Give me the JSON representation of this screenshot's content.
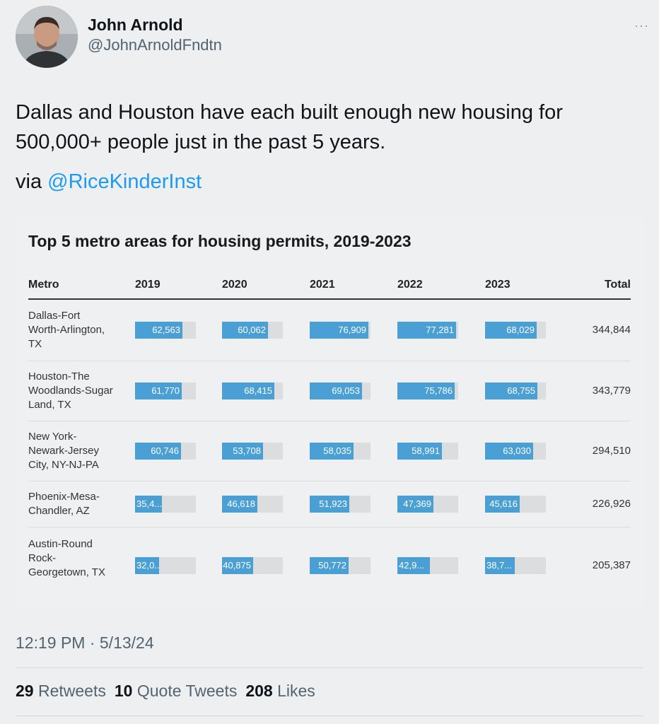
{
  "author": {
    "display_name": "John Arnold",
    "handle": "@JohnArnoldFndtn",
    "avatar_icon": "person-photo-icon"
  },
  "more_label": "···",
  "tweet": {
    "text": "Dallas and Houston have each built enough new housing for 500,000+ people just in the past 5 years.",
    "via_prefix": "via ",
    "via_mention": "@RiceKinderInst"
  },
  "chart_data": {
    "type": "table",
    "title": "Top 5 metro areas for housing permits, 2019-2023",
    "columns": [
      "Metro",
      "2019",
      "2020",
      "2021",
      "2022",
      "2023",
      "Total"
    ],
    "bar_max": 80000,
    "rows": [
      {
        "metro": "Dallas-Fort Worth-Arlington, TX",
        "values": [
          62563,
          60062,
          76909,
          77281,
          68029
        ],
        "labels": [
          "62,563",
          "60,062",
          "76,909",
          "77,281",
          "68,029"
        ],
        "total": "344,844"
      },
      {
        "metro": "Houston-The Woodlands-Sugar Land, TX",
        "values": [
          61770,
          68415,
          69053,
          75786,
          68755
        ],
        "labels": [
          "61,770",
          "68,415",
          "69,053",
          "75,786",
          "68,755"
        ],
        "total": "343,779"
      },
      {
        "metro": "New York-Newark-Jersey City, NY-NJ-PA",
        "values": [
          60746,
          53708,
          58035,
          58991,
          63030
        ],
        "labels": [
          "60,746",
          "53,708",
          "58,035",
          "58,991",
          "63,030"
        ],
        "total": "294,510"
      },
      {
        "metro": "Phoenix-Mesa-Chandler, AZ",
        "values": [
          35400,
          46618,
          51923,
          47369,
          45616
        ],
        "labels": [
          "35,4...",
          "46,618",
          "51,923",
          "47,369",
          "45,616"
        ],
        "total": "226,926"
      },
      {
        "metro": "Austin-Round Rock-Georgetown, TX",
        "values": [
          32000,
          40875,
          50772,
          42900,
          38700
        ],
        "labels": [
          "32,0...",
          "40,875",
          "50,772",
          "42,9...",
          "38,7..."
        ],
        "total": "205,387"
      }
    ],
    "colors": {
      "bar": "#4a9fd4",
      "track": "#dcdddf"
    }
  },
  "timestamp": "12:19 PM · 5/13/24",
  "stats": {
    "retweets_count": "29",
    "retweets_label": "Retweets",
    "quotes_count": "10",
    "quotes_label": "Quote Tweets",
    "likes_count": "208",
    "likes_label": "Likes"
  }
}
